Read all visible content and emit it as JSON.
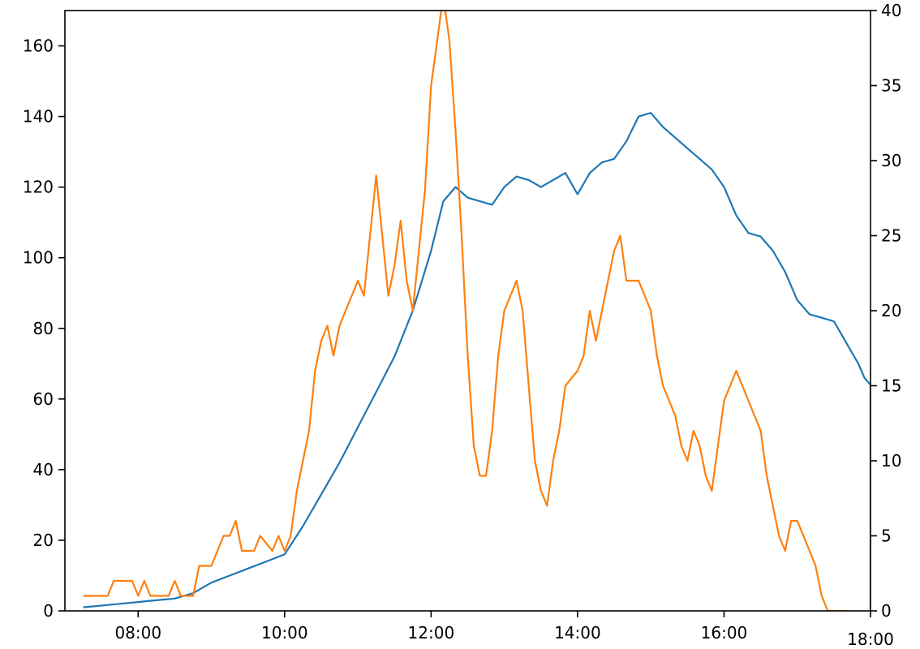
{
  "chart_data": {
    "type": "line",
    "title": "",
    "xlabel": "",
    "ylabel": "",
    "y2label": "",
    "grid": false,
    "legend": "none",
    "xlim": [
      "07:00",
      "18:00"
    ],
    "ylim": [
      0,
      170
    ],
    "y2lim": [
      0,
      40
    ],
    "x_ticks": [
      "08:00",
      "10:00",
      "12:00",
      "14:00",
      "16:00",
      "18:00"
    ],
    "y_ticks": [
      "0",
      "20",
      "40",
      "60",
      "80",
      "100",
      "120",
      "140",
      "160"
    ],
    "y2_ticks": [
      "0",
      "5",
      "10",
      "15",
      "20",
      "25",
      "30",
      "35",
      "40"
    ],
    "series": [
      {
        "axis": "left",
        "color": "#1f77b4",
        "points": [
          [
            "07:15",
            1
          ],
          [
            "07:30",
            1.5
          ],
          [
            "07:45",
            2
          ],
          [
            "08:00",
            2.5
          ],
          [
            "08:15",
            3
          ],
          [
            "08:30",
            3.5
          ],
          [
            "08:45",
            5
          ],
          [
            "09:00",
            8
          ],
          [
            "09:15",
            10
          ],
          [
            "09:30",
            12
          ],
          [
            "09:45",
            14
          ],
          [
            "10:00",
            16
          ],
          [
            "10:15",
            24
          ],
          [
            "10:30",
            33
          ],
          [
            "10:45",
            42
          ],
          [
            "11:00",
            52
          ],
          [
            "11:15",
            62
          ],
          [
            "11:30",
            72
          ],
          [
            "11:45",
            85
          ],
          [
            "12:00",
            102
          ],
          [
            "12:10",
            116
          ],
          [
            "12:20",
            120
          ],
          [
            "12:30",
            117
          ],
          [
            "12:40",
            116
          ],
          [
            "12:50",
            115
          ],
          [
            "13:00",
            120
          ],
          [
            "13:10",
            123
          ],
          [
            "13:20",
            122
          ],
          [
            "13:30",
            120
          ],
          [
            "13:40",
            122
          ],
          [
            "13:50",
            124
          ],
          [
            "14:00",
            118
          ],
          [
            "14:10",
            124
          ],
          [
            "14:20",
            127
          ],
          [
            "14:30",
            128
          ],
          [
            "14:40",
            133
          ],
          [
            "14:50",
            140
          ],
          [
            "15:00",
            141
          ],
          [
            "15:10",
            137
          ],
          [
            "15:20",
            134
          ],
          [
            "15:30",
            131
          ],
          [
            "15:40",
            128
          ],
          [
            "15:50",
            125
          ],
          [
            "16:00",
            120
          ],
          [
            "16:10",
            112
          ],
          [
            "16:20",
            107
          ],
          [
            "16:30",
            106
          ],
          [
            "16:40",
            102
          ],
          [
            "16:50",
            96
          ],
          [
            "17:00",
            88
          ],
          [
            "17:10",
            84
          ],
          [
            "17:20",
            83
          ],
          [
            "17:30",
            82
          ],
          [
            "17:40",
            76
          ],
          [
            "17:50",
            70
          ],
          [
            "17:55",
            66
          ],
          [
            "18:00",
            64
          ],
          [
            "18:00",
            0
          ]
        ]
      },
      {
        "axis": "right",
        "color": "#ff7f0e",
        "points": [
          [
            "07:15",
            1
          ],
          [
            "07:35",
            1
          ],
          [
            "07:40",
            2
          ],
          [
            "07:55",
            2
          ],
          [
            "08:00",
            1
          ],
          [
            "08:05",
            2
          ],
          [
            "08:10",
            1
          ],
          [
            "08:25",
            1
          ],
          [
            "08:30",
            2
          ],
          [
            "08:35",
            1
          ],
          [
            "08:45",
            1
          ],
          [
            "08:50",
            3
          ],
          [
            "09:00",
            3
          ],
          [
            "09:10",
            5
          ],
          [
            "09:15",
            5
          ],
          [
            "09:20",
            6
          ],
          [
            "09:25",
            4
          ],
          [
            "09:35",
            4
          ],
          [
            "09:40",
            5
          ],
          [
            "09:50",
            4
          ],
          [
            "09:55",
            5
          ],
          [
            "10:00",
            4
          ],
          [
            "10:05",
            5
          ],
          [
            "10:10",
            8
          ],
          [
            "10:15",
            10
          ],
          [
            "10:20",
            12
          ],
          [
            "10:25",
            16
          ],
          [
            "10:30",
            18
          ],
          [
            "10:35",
            19
          ],
          [
            "10:40",
            17
          ],
          [
            "10:45",
            19
          ],
          [
            "10:50",
            20
          ],
          [
            "10:55",
            21
          ],
          [
            "11:00",
            22
          ],
          [
            "11:05",
            21
          ],
          [
            "11:10",
            25
          ],
          [
            "11:15",
            29
          ],
          [
            "11:20",
            25
          ],
          [
            "11:25",
            21
          ],
          [
            "11:30",
            23
          ],
          [
            "11:35",
            26
          ],
          [
            "11:40",
            22
          ],
          [
            "11:45",
            20
          ],
          [
            "11:50",
            24
          ],
          [
            "11:55",
            28
          ],
          [
            "12:00",
            35
          ],
          [
            "12:05",
            38
          ],
          [
            "12:10",
            41
          ],
          [
            "12:15",
            38
          ],
          [
            "12:20",
            32
          ],
          [
            "12:25",
            25
          ],
          [
            "12:30",
            17
          ],
          [
            "12:35",
            11
          ],
          [
            "12:40",
            9
          ],
          [
            "12:45",
            9
          ],
          [
            "12:50",
            12
          ],
          [
            "12:55",
            17
          ],
          [
            "13:00",
            20
          ],
          [
            "13:05",
            21
          ],
          [
            "13:10",
            22
          ],
          [
            "13:15",
            20
          ],
          [
            "13:20",
            15
          ],
          [
            "13:25",
            10
          ],
          [
            "13:30",
            8
          ],
          [
            "13:35",
            7
          ],
          [
            "13:40",
            10
          ],
          [
            "13:45",
            12
          ],
          [
            "13:50",
            15
          ],
          [
            "14:00",
            16
          ],
          [
            "14:05",
            17
          ],
          [
            "14:10",
            20
          ],
          [
            "14:15",
            18
          ],
          [
            "14:20",
            20
          ],
          [
            "14:25",
            22
          ],
          [
            "14:30",
            24
          ],
          [
            "14:35",
            25
          ],
          [
            "14:40",
            22
          ],
          [
            "14:50",
            22
          ],
          [
            "15:00",
            20
          ],
          [
            "15:05",
            17
          ],
          [
            "15:10",
            15
          ],
          [
            "15:20",
            13
          ],
          [
            "15:25",
            11
          ],
          [
            "15:30",
            10
          ],
          [
            "15:35",
            12
          ],
          [
            "15:40",
            11
          ],
          [
            "15:45",
            9
          ],
          [
            "15:50",
            8
          ],
          [
            "15:55",
            11
          ],
          [
            "16:00",
            14
          ],
          [
            "16:05",
            15
          ],
          [
            "16:10",
            16
          ],
          [
            "16:15",
            15
          ],
          [
            "16:20",
            14
          ],
          [
            "16:25",
            13
          ],
          [
            "16:30",
            12
          ],
          [
            "16:35",
            9
          ],
          [
            "16:40",
            7
          ],
          [
            "16:45",
            5
          ],
          [
            "16:50",
            4
          ],
          [
            "16:55",
            6
          ],
          [
            "17:00",
            6
          ],
          [
            "17:05",
            5
          ],
          [
            "17:10",
            4
          ],
          [
            "17:15",
            3
          ],
          [
            "17:20",
            1
          ],
          [
            "17:25",
            0
          ],
          [
            "17:40",
            0
          ]
        ]
      }
    ]
  }
}
